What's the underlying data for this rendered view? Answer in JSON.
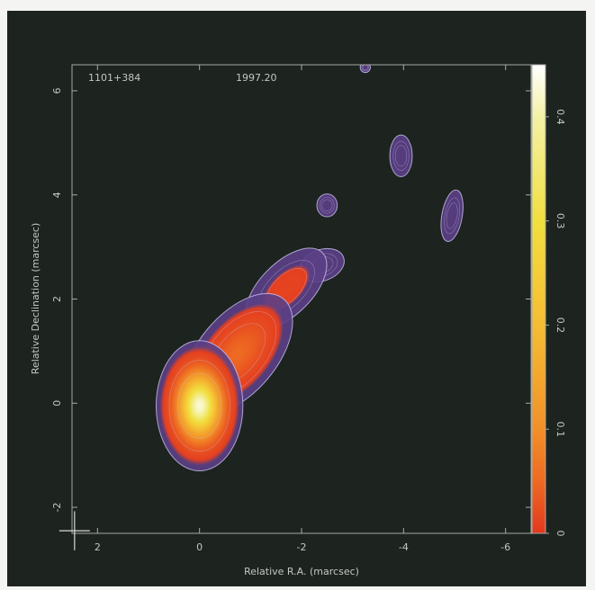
{
  "chart_data": {
    "type": "image",
    "source_label": "1101+384",
    "epoch_label": "1997.20",
    "x_label": "Relative R.A. (marcsec)",
    "y_label": "Relative Declination (marcsec)",
    "xlim": [
      2.5,
      -6.5
    ],
    "xticks": [
      2,
      0,
      -2,
      -4,
      -6
    ],
    "ylim": [
      -2.5,
      6.5
    ],
    "yticks": [
      -2,
      0,
      2,
      4,
      6
    ],
    "clim": [
      0,
      0.45
    ],
    "cticks": [
      0,
      0.1,
      0.2,
      0.3,
      0.4
    ],
    "lowest_contour": 0.0015,
    "colormap": [
      {
        "value": 0,
        "color": "#e2381f"
      },
      {
        "value": 0.05,
        "color": "#ee6a22"
      },
      {
        "value": 0.1,
        "color": "#f29028"
      },
      {
        "value": 0.2,
        "color": "#f5bd32"
      },
      {
        "value": 0.3,
        "color": "#f1df3e"
      },
      {
        "value": 0.4,
        "color": "#f4f1a6"
      },
      {
        "value": 0.45,
        "color": "#ffffff"
      }
    ],
    "halo_color": "#5b3f86",
    "contour_color": "#c9c3f0",
    "components": [
      {
        "x": 0,
        "y": -0.05,
        "rx": 0.85,
        "ry": 1.25,
        "angle": 0,
        "peak": 0.43
      },
      {
        "x": -0.75,
        "y": 0.95,
        "rx": 1.4,
        "ry": 0.75,
        "angle": -50,
        "peak": 0.05
      },
      {
        "x": -1.7,
        "y": 2.2,
        "rx": 1.0,
        "ry": 0.5,
        "angle": -45,
        "peak": 0.012
      },
      {
        "x": -2.4,
        "y": 2.65,
        "rx": 0.45,
        "ry": 0.3,
        "angle": -20,
        "peak": 0.005
      },
      {
        "x": -2.5,
        "y": 3.8,
        "rx": 0.2,
        "ry": 0.22,
        "angle": 0,
        "peak": 0.003
      },
      {
        "x": -3.95,
        "y": 4.75,
        "rx": 0.22,
        "ry": 0.4,
        "angle": 0,
        "peak": 0.003
      },
      {
        "x": -4.95,
        "y": 3.6,
        "rx": 0.2,
        "ry": 0.5,
        "angle": 10,
        "peak": 0.003
      },
      {
        "x": -3.25,
        "y": 6.45,
        "rx": 0.1,
        "ry": 0.1,
        "angle": 0,
        "peak": 0.002
      }
    ],
    "beam": {
      "x": 2.45,
      "y": -2.45,
      "width": 0.6,
      "height": 0.75
    }
  }
}
